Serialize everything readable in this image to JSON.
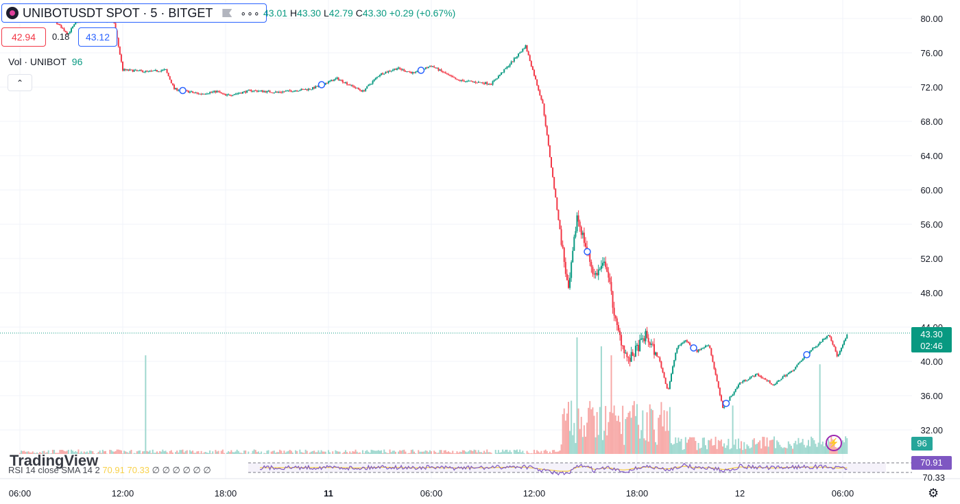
{
  "header": {
    "symbol_title": "UNIBOTUSDT SPOT · 5 · BITGET",
    "more_label": "∘∘∘",
    "ohlc": {
      "o": "43.01",
      "h_label": "H",
      "h": "43.30",
      "l_label": "L",
      "l": "42.79",
      "c_label": "C",
      "c": "43.30",
      "change": "+0.29 (+0.67%)"
    },
    "sell_price": "42.94",
    "spread": "0.18",
    "buy_price": "43.12"
  },
  "volume_legend": {
    "label": "Vol · UNIBOT",
    "value": "96"
  },
  "watermark": "TradingView",
  "rsi_legend": {
    "label": "RSI 14 close SMA 14 2",
    "value": "70.91",
    "extra": "70.33",
    "zeros": "∅ ∅ ∅ ∅ ∅ ∅"
  },
  "price_tag": {
    "price": "43.30",
    "countdown": "02:46"
  },
  "volume_tag": "96",
  "rsi_tag": "70.91",
  "rsi_low": "70.33",
  "colors": {
    "up": "#089981",
    "down": "#f23645",
    "rsi": "#7e57c2",
    "rsi_ma": "#f7c61d",
    "accent": "#2962ff"
  },
  "icons": {
    "settings": "settings-icon",
    "flash": "lightning-icon",
    "collapse": "chevron-up-icon"
  },
  "chart_data": {
    "type": "candlestick",
    "title": "UNIBOTUSDT SPOT · 5 · BITGET",
    "xlabel": "",
    "ylabel": "",
    "ylim": [
      29.5,
      81.5
    ],
    "y_ticks": [
      "80.00",
      "76.00",
      "72.00",
      "68.00",
      "64.00",
      "60.00",
      "56.00",
      "52.00",
      "48.00",
      "44.00",
      "40.00",
      "36.00",
      "32.00"
    ],
    "x_ticks": [
      "06:00",
      "12:00",
      "18:00",
      "11",
      "06:00",
      "12:00",
      "18:00",
      "12",
      "06:00"
    ],
    "x_tick_hours": [
      0,
      6,
      12,
      18,
      24,
      30,
      36,
      42,
      48
    ],
    "last_price": 43.3,
    "path_hours": [
      0,
      2.0,
      2.8,
      3.3,
      4.0,
      5.5,
      6.0,
      7.5,
      8.5,
      9.0,
      10.5,
      11.5,
      12.0,
      13.5,
      15.0,
      17.0,
      18.5,
      20.0,
      21.0,
      22.0,
      23.0,
      24.0,
      25.5,
      26.5,
      27.5,
      28.5,
      29.5,
      30.5,
      32.0,
      32.5,
      33.5,
      34.2,
      34.8,
      35.5,
      36.5,
      37.3,
      37.8,
      38.3,
      38.8,
      39.5,
      40.2,
      41.0,
      42.0,
      43.0,
      44.0,
      44.5,
      45.0,
      46.0,
      47.2,
      47.7,
      48.3
    ],
    "path_prices": [
      80.5,
      79.8,
      78.2,
      79.6,
      80.2,
      79.5,
      74.0,
      73.8,
      74.0,
      71.8,
      71.2,
      71.5,
      71.0,
      71.6,
      71.4,
      71.8,
      73.0,
      71.5,
      73.5,
      74.2,
      73.6,
      74.5,
      72.8,
      72.6,
      72.4,
      74.5,
      76.8,
      70.0,
      48.0,
      57.0,
      50.0,
      51.5,
      44.0,
      40.0,
      43.0,
      40.2,
      36.5,
      41.5,
      42.5,
      41.2,
      42.0,
      34.5,
      37.5,
      38.5,
      37.2,
      38.2,
      38.8,
      41.0,
      43.2,
      40.5,
      43.3
    ],
    "volume_spikes": [
      {
        "hour": 7.3,
        "value": 55
      },
      {
        "hour": 33.9,
        "value": 60
      },
      {
        "hour": 32.5,
        "value": 65
      },
      {
        "hour": 34.5,
        "value": 55
      },
      {
        "hour": 41.6,
        "value": 27
      },
      {
        "hour": 46.7,
        "value": 50
      }
    ],
    "rsi_levels": [
      70,
      30
    ],
    "markers_hours": [
      9.5,
      17.6,
      23.4,
      33.1,
      39.3,
      41.2,
      45.9
    ]
  }
}
